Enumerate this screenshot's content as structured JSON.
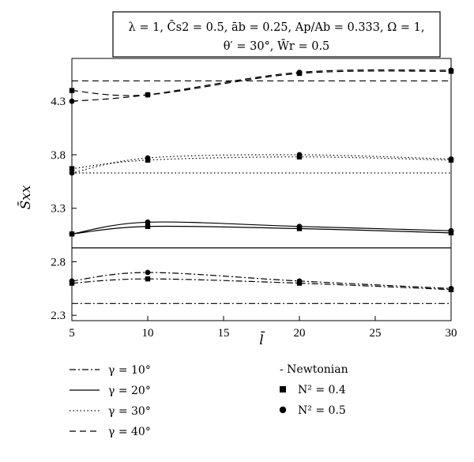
{
  "chart_data": {
    "type": "line",
    "title": "",
    "annotation": {
      "line1": "λ = 1, C̄s2 = 0.5, āb = 0.25, Ap/Ab = 0.333, Ω = 1,",
      "line2": "θ′ = 30°, W̄r = 0.5"
    },
    "xlabel": "l̄",
    "ylabel": "S̄xx",
    "xlim": [
      5,
      30
    ],
    "ylim": [
      2.25,
      4.7
    ],
    "x_ticks": [
      5,
      10,
      15,
      20,
      25,
      30
    ],
    "x_tick_labels": [
      "5",
      "10",
      "15",
      "20",
      "25",
      "30"
    ],
    "y_ticks": [
      2.3,
      2.8,
      3.3,
      3.8,
      4.3
    ],
    "y_tick_labels": [
      "2.3",
      "2.8",
      "3.3",
      "3.8",
      "4.3"
    ],
    "grid": false,
    "legend_position": "bottom",
    "x": [
      5,
      10,
      20,
      30
    ],
    "series": [
      {
        "name": "γ = 10°",
        "gamma": "10",
        "line_style": "dashdot",
        "newtonian": [
          2.41,
          2.41,
          2.41,
          2.41
        ],
        "N2_0_4": [
          2.6,
          2.64,
          2.6,
          2.54
        ],
        "N2_0_5": [
          2.62,
          2.7,
          2.62,
          2.55
        ]
      },
      {
        "name": "γ = 20°",
        "gamma": "20",
        "line_style": "solid",
        "newtonian": [
          2.93,
          2.93,
          2.93,
          2.93
        ],
        "N2_0_4": [
          3.06,
          3.13,
          3.11,
          3.07
        ],
        "N2_0_5": [
          3.06,
          3.17,
          3.13,
          3.09
        ]
      },
      {
        "name": "γ = 30°",
        "gamma": "30",
        "line_style": "dotted",
        "newtonian": [
          3.63,
          3.63,
          3.63,
          3.63
        ],
        "N2_0_4": [
          3.67,
          3.75,
          3.78,
          3.75
        ],
        "N2_0_5": [
          3.63,
          3.77,
          3.8,
          3.76
        ]
      },
      {
        "name": "γ = 40°",
        "gamma": "40",
        "line_style": "dashed",
        "newtonian": [
          4.49,
          4.49,
          4.49,
          4.49
        ],
        "N2_0_4": [
          4.4,
          4.36,
          4.56,
          4.58
        ],
        "N2_0_5": [
          4.3,
          4.36,
          4.57,
          4.59
        ]
      }
    ],
    "legend": {
      "items": [
        {
          "label": "γ = 10°",
          "line_style": "dashdot"
        },
        {
          "label": "γ = 20°",
          "line_style": "solid"
        },
        {
          "label": "γ = 30°",
          "line_style": "dotted"
        },
        {
          "label": "γ = 40°",
          "line_style": "dashed"
        }
      ],
      "markers": [
        {
          "label": "- Newtonian",
          "marker": "none"
        },
        {
          "label": "N² = 0.4",
          "marker": "square"
        },
        {
          "label": "N² = 0.5",
          "marker": "circle"
        }
      ]
    }
  }
}
